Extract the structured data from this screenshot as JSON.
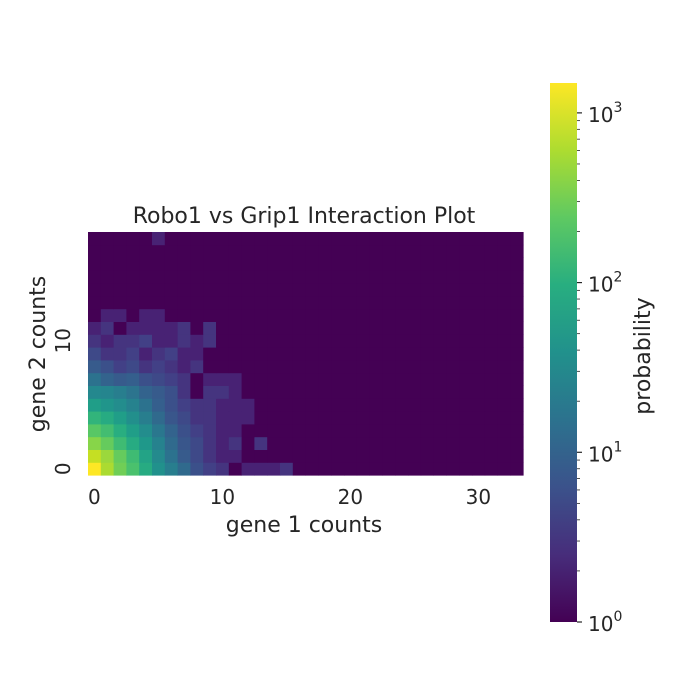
{
  "chart_data": {
    "type": "heatmap",
    "title": "Robo1 vs Grip1 Interaction Plot",
    "xlabel": "gene 1 counts",
    "ylabel": "gene 2 counts",
    "x_range": [
      0,
      33
    ],
    "y_range": [
      0,
      18
    ],
    "x_ticks": [
      0,
      10,
      20,
      30
    ],
    "y_ticks": [
      0,
      10
    ],
    "colormap": "viridis",
    "grid": false,
    "colorbar": {
      "label": "probability",
      "scale": "log",
      "range": [
        1,
        1500
      ],
      "ticks": [
        {
          "value": 1,
          "label": "10",
          "exp": "0"
        },
        {
          "value": 10,
          "label": "10",
          "exp": "1"
        },
        {
          "value": 100,
          "label": "10",
          "exp": "2"
        },
        {
          "value": 1000,
          "label": "10",
          "exp": "3"
        }
      ]
    },
    "cells": [
      {
        "x": 0,
        "y": 0,
        "value": 1500
      },
      {
        "x": 1,
        "y": 0,
        "value": 600
      },
      {
        "x": 2,
        "y": 0,
        "value": 300
      },
      {
        "x": 3,
        "y": 0,
        "value": 180
      },
      {
        "x": 4,
        "y": 0,
        "value": 90
      },
      {
        "x": 5,
        "y": 0,
        "value": 40
      },
      {
        "x": 6,
        "y": 0,
        "value": 22
      },
      {
        "x": 7,
        "y": 0,
        "value": 12
      },
      {
        "x": 8,
        "y": 0,
        "value": 6
      },
      {
        "x": 9,
        "y": 0,
        "value": 4
      },
      {
        "x": 10,
        "y": 0,
        "value": 3
      },
      {
        "x": 11,
        "y": 0,
        "value": 1
      },
      {
        "x": 12,
        "y": 0,
        "value": 2
      },
      {
        "x": 13,
        "y": 0,
        "value": 2
      },
      {
        "x": 14,
        "y": 0,
        "value": 2
      },
      {
        "x": 15,
        "y": 0,
        "value": 3
      },
      {
        "x": 0,
        "y": 1,
        "value": 800
      },
      {
        "x": 1,
        "y": 1,
        "value": 500
      },
      {
        "x": 2,
        "y": 1,
        "value": 260
      },
      {
        "x": 3,
        "y": 1,
        "value": 150
      },
      {
        "x": 4,
        "y": 1,
        "value": 70
      },
      {
        "x": 5,
        "y": 1,
        "value": 32
      },
      {
        "x": 6,
        "y": 1,
        "value": 15
      },
      {
        "x": 7,
        "y": 1,
        "value": 8
      },
      {
        "x": 8,
        "y": 1,
        "value": 5
      },
      {
        "x": 9,
        "y": 1,
        "value": 3
      },
      {
        "x": 10,
        "y": 1,
        "value": 2
      },
      {
        "x": 11,
        "y": 1,
        "value": 2
      },
      {
        "x": 0,
        "y": 2,
        "value": 400
      },
      {
        "x": 1,
        "y": 2,
        "value": 260
      },
      {
        "x": 2,
        "y": 2,
        "value": 150
      },
      {
        "x": 3,
        "y": 2,
        "value": 90
      },
      {
        "x": 4,
        "y": 2,
        "value": 50
      },
      {
        "x": 5,
        "y": 2,
        "value": 25
      },
      {
        "x": 6,
        "y": 2,
        "value": 12
      },
      {
        "x": 7,
        "y": 2,
        "value": 7
      },
      {
        "x": 8,
        "y": 2,
        "value": 5
      },
      {
        "x": 9,
        "y": 2,
        "value": 3
      },
      {
        "x": 10,
        "y": 2,
        "value": 2
      },
      {
        "x": 11,
        "y": 2,
        "value": 3
      },
      {
        "x": 12,
        "y": 2,
        "value": 1
      },
      {
        "x": 13,
        "y": 2,
        "value": 3
      },
      {
        "x": 0,
        "y": 3,
        "value": 220
      },
      {
        "x": 1,
        "y": 3,
        "value": 160
      },
      {
        "x": 2,
        "y": 3,
        "value": 100
      },
      {
        "x": 3,
        "y": 3,
        "value": 60
      },
      {
        "x": 4,
        "y": 3,
        "value": 35
      },
      {
        "x": 5,
        "y": 3,
        "value": 18
      },
      {
        "x": 6,
        "y": 3,
        "value": 10
      },
      {
        "x": 7,
        "y": 3,
        "value": 6
      },
      {
        "x": 8,
        "y": 3,
        "value": 4
      },
      {
        "x": 9,
        "y": 3,
        "value": 3
      },
      {
        "x": 10,
        "y": 3,
        "value": 2
      },
      {
        "x": 11,
        "y": 3,
        "value": 2
      },
      {
        "x": 0,
        "y": 4,
        "value": 120
      },
      {
        "x": 1,
        "y": 4,
        "value": 90
      },
      {
        "x": 2,
        "y": 4,
        "value": 60
      },
      {
        "x": 3,
        "y": 4,
        "value": 38
      },
      {
        "x": 4,
        "y": 4,
        "value": 22
      },
      {
        "x": 5,
        "y": 4,
        "value": 12
      },
      {
        "x": 6,
        "y": 4,
        "value": 7
      },
      {
        "x": 7,
        "y": 4,
        "value": 5
      },
      {
        "x": 8,
        "y": 4,
        "value": 3
      },
      {
        "x": 9,
        "y": 4,
        "value": 3
      },
      {
        "x": 10,
        "y": 4,
        "value": 2
      },
      {
        "x": 11,
        "y": 4,
        "value": 2
      },
      {
        "x": 12,
        "y": 4,
        "value": 2
      },
      {
        "x": 0,
        "y": 5,
        "value": 60
      },
      {
        "x": 1,
        "y": 5,
        "value": 45
      },
      {
        "x": 2,
        "y": 5,
        "value": 35
      },
      {
        "x": 3,
        "y": 5,
        "value": 25
      },
      {
        "x": 4,
        "y": 5,
        "value": 15
      },
      {
        "x": 5,
        "y": 5,
        "value": 9
      },
      {
        "x": 6,
        "y": 5,
        "value": 6
      },
      {
        "x": 7,
        "y": 5,
        "value": 4
      },
      {
        "x": 8,
        "y": 5,
        "value": 3
      },
      {
        "x": 9,
        "y": 5,
        "value": 3
      },
      {
        "x": 10,
        "y": 5,
        "value": 2
      },
      {
        "x": 11,
        "y": 5,
        "value": 2
      },
      {
        "x": 12,
        "y": 5,
        "value": 2
      },
      {
        "x": 0,
        "y": 6,
        "value": 30
      },
      {
        "x": 1,
        "y": 6,
        "value": 28
      },
      {
        "x": 2,
        "y": 6,
        "value": 22
      },
      {
        "x": 3,
        "y": 6,
        "value": 16
      },
      {
        "x": 4,
        "y": 6,
        "value": 10
      },
      {
        "x": 5,
        "y": 6,
        "value": 8
      },
      {
        "x": 6,
        "y": 6,
        "value": 6
      },
      {
        "x": 7,
        "y": 6,
        "value": 3
      },
      {
        "x": 8,
        "y": 6,
        "value": 1
      },
      {
        "x": 9,
        "y": 6,
        "value": 3
      },
      {
        "x": 10,
        "y": 6,
        "value": 3
      },
      {
        "x": 11,
        "y": 6,
        "value": 2
      },
      {
        "x": 0,
        "y": 7,
        "value": 15
      },
      {
        "x": 1,
        "y": 7,
        "value": 10
      },
      {
        "x": 2,
        "y": 7,
        "value": 8
      },
      {
        "x": 3,
        "y": 7,
        "value": 9
      },
      {
        "x": 4,
        "y": 7,
        "value": 6
      },
      {
        "x": 5,
        "y": 7,
        "value": 5
      },
      {
        "x": 6,
        "y": 7,
        "value": 4
      },
      {
        "x": 7,
        "y": 7,
        "value": 3
      },
      {
        "x": 9,
        "y": 7,
        "value": 2
      },
      {
        "x": 10,
        "y": 7,
        "value": 2
      },
      {
        "x": 11,
        "y": 7,
        "value": 2
      },
      {
        "x": 0,
        "y": 8,
        "value": 8
      },
      {
        "x": 1,
        "y": 8,
        "value": 6
      },
      {
        "x": 2,
        "y": 8,
        "value": 4
      },
      {
        "x": 3,
        "y": 8,
        "value": 5
      },
      {
        "x": 4,
        "y": 8,
        "value": 3
      },
      {
        "x": 5,
        "y": 8,
        "value": 4
      },
      {
        "x": 6,
        "y": 8,
        "value": 3
      },
      {
        "x": 7,
        "y": 8,
        "value": 2
      },
      {
        "x": 8,
        "y": 8,
        "value": 3
      },
      {
        "x": 0,
        "y": 9,
        "value": 5
      },
      {
        "x": 1,
        "y": 9,
        "value": 3
      },
      {
        "x": 2,
        "y": 9,
        "value": 3
      },
      {
        "x": 3,
        "y": 9,
        "value": 4
      },
      {
        "x": 4,
        "y": 9,
        "value": 2
      },
      {
        "x": 5,
        "y": 9,
        "value": 3
      },
      {
        "x": 6,
        "y": 9,
        "value": 4
      },
      {
        "x": 7,
        "y": 9,
        "value": 2
      },
      {
        "x": 8,
        "y": 9,
        "value": 2
      },
      {
        "x": 0,
        "y": 10,
        "value": 3
      },
      {
        "x": 1,
        "y": 10,
        "value": 2
      },
      {
        "x": 2,
        "y": 10,
        "value": 3
      },
      {
        "x": 3,
        "y": 10,
        "value": 3
      },
      {
        "x": 4,
        "y": 10,
        "value": 4
      },
      {
        "x": 5,
        "y": 10,
        "value": 2
      },
      {
        "x": 6,
        "y": 10,
        "value": 2
      },
      {
        "x": 7,
        "y": 10,
        "value": 3
      },
      {
        "x": 8,
        "y": 10,
        "value": 2
      },
      {
        "x": 9,
        "y": 10,
        "value": 3
      },
      {
        "x": 0,
        "y": 11,
        "value": 2
      },
      {
        "x": 1,
        "y": 11,
        "value": 3
      },
      {
        "x": 3,
        "y": 11,
        "value": 2
      },
      {
        "x": 4,
        "y": 11,
        "value": 2
      },
      {
        "x": 5,
        "y": 11,
        "value": 2
      },
      {
        "x": 6,
        "y": 11,
        "value": 2
      },
      {
        "x": 7,
        "y": 11,
        "value": 3
      },
      {
        "x": 9,
        "y": 11,
        "value": 3
      },
      {
        "x": 1,
        "y": 12,
        "value": 2
      },
      {
        "x": 2,
        "y": 12,
        "value": 2
      },
      {
        "x": 4,
        "y": 12,
        "value": 2
      },
      {
        "x": 5,
        "y": 12,
        "value": 2
      },
      {
        "x": 5,
        "y": 18,
        "value": 2
      }
    ]
  }
}
